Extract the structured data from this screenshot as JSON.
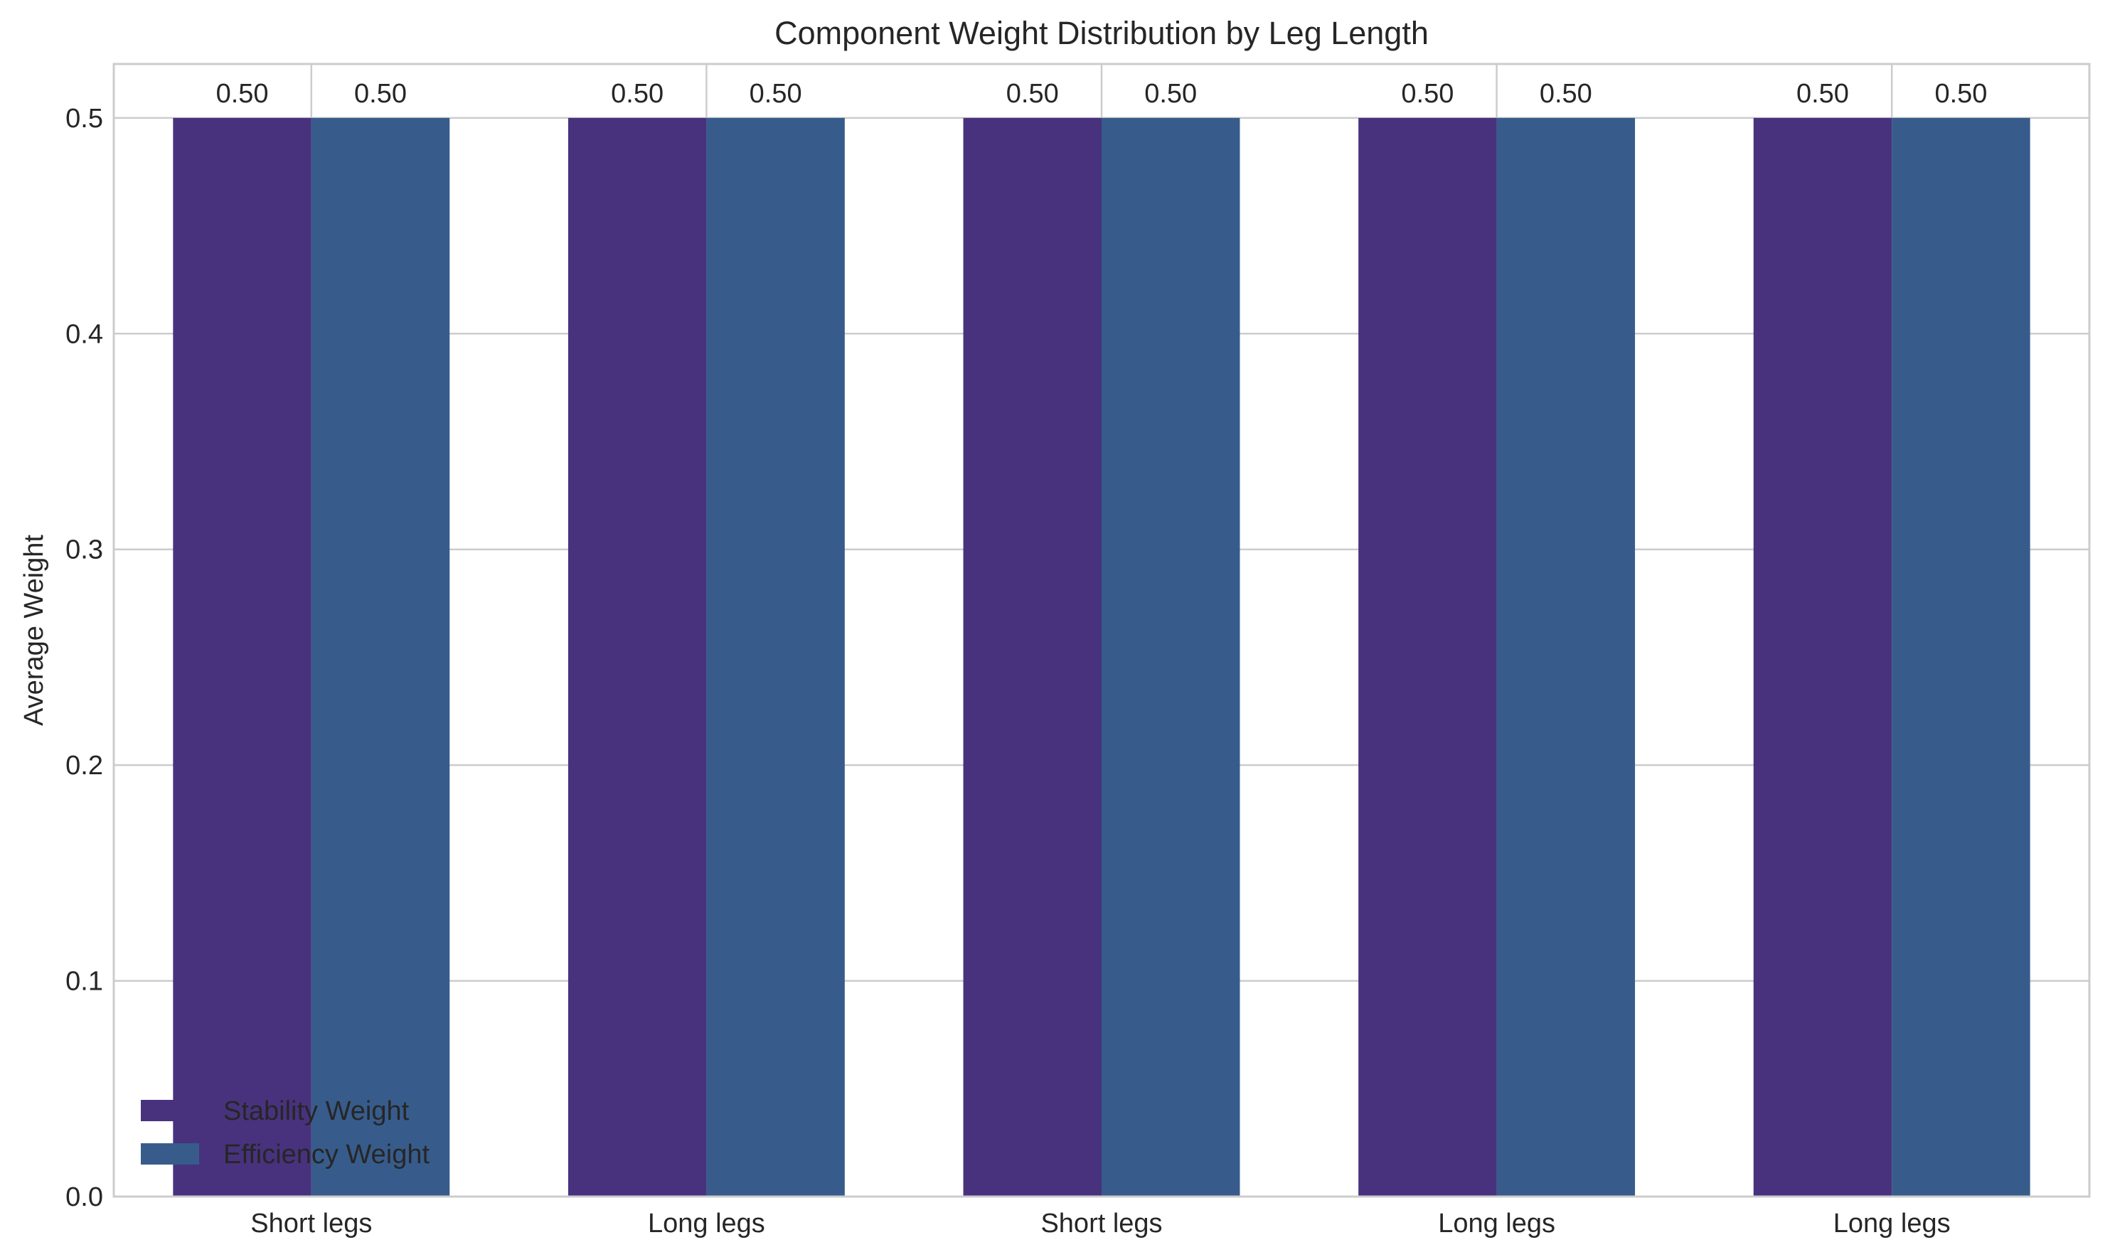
{
  "chart_data": {
    "type": "bar",
    "title": "Component Weight Distribution by Leg Length",
    "xlabel": "",
    "ylabel": "Average Weight",
    "categories": [
      "Short legs",
      "Long legs",
      "Short legs",
      "Long legs",
      "Long legs"
    ],
    "series": [
      {
        "name": "Stability Weight",
        "values": [
          0.5,
          0.5,
          0.5,
          0.5,
          0.5
        ],
        "color": "#48327d"
      },
      {
        "name": "Efficiency Weight",
        "values": [
          0.5,
          0.5,
          0.5,
          0.5,
          0.5
        ],
        "color": "#375c8c"
      }
    ],
    "data_labels": [
      [
        "0.50",
        "0.50",
        "0.50",
        "0.50",
        "0.50"
      ],
      [
        "0.50",
        "0.50",
        "0.50",
        "0.50",
        "0.50"
      ]
    ],
    "ylim": [
      0,
      0.525
    ],
    "yticks": [
      0.0,
      0.1,
      0.2,
      0.3,
      0.4,
      0.5
    ],
    "ytick_labels": [
      "0.0",
      "0.1",
      "0.2",
      "0.3",
      "0.4",
      "0.5"
    ],
    "grid": true,
    "legend_position": "lower-left"
  }
}
